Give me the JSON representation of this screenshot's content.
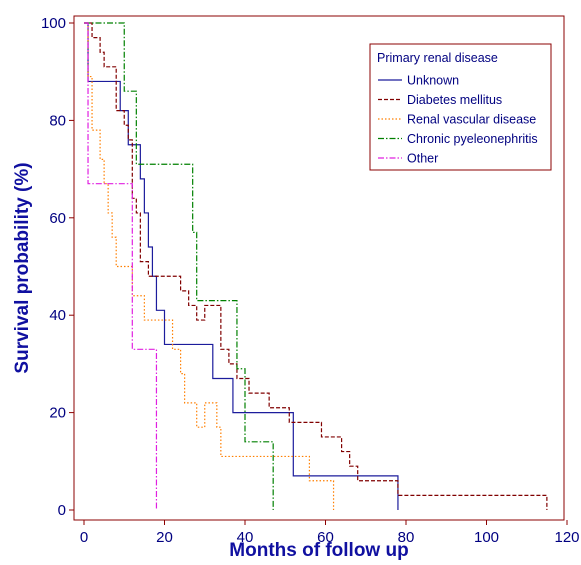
{
  "chart_data": {
    "type": "line",
    "subtype": "kaplan-meier step",
    "xlabel": "Months of follow up",
    "ylabel": "Survival probability (%)",
    "xlim": [
      0,
      120
    ],
    "ylim": [
      0,
      100
    ],
    "xticks": [
      0,
      20,
      40,
      60,
      80,
      100,
      120
    ],
    "yticks": [
      0,
      20,
      40,
      60,
      80,
      100
    ],
    "grid": false,
    "legend": {
      "title": "Primary renal disease",
      "position": "top-right"
    },
    "colors": {
      "axis": "#8b0000",
      "text": "#000080",
      "axis_title": "#1010a0"
    },
    "series": [
      {
        "name": "Unknown",
        "color": "#1c1c9c",
        "dash": "solid",
        "x": [
          0,
          1,
          9,
          11,
          14,
          15,
          16,
          17,
          18,
          20,
          32,
          33,
          37,
          52,
          78
        ],
        "y": [
          100,
          88,
          82,
          75,
          68,
          61,
          54,
          48,
          41,
          34,
          27,
          27,
          20,
          7,
          0
        ]
      },
      {
        "name": "Diabetes mellitus",
        "color": "#800000",
        "dash": "dashed",
        "x": [
          0,
          2,
          4,
          5,
          8,
          10,
          11,
          12,
          13,
          14,
          16,
          21,
          24,
          26,
          28,
          30,
          34,
          36,
          38,
          39,
          41,
          46,
          51,
          59,
          62,
          64,
          66,
          67,
          68,
          70,
          72,
          76,
          78,
          115
        ],
        "y": [
          100,
          97,
          94,
          91,
          82,
          79,
          76,
          64,
          61,
          51,
          48,
          48,
          45,
          42,
          39,
          42,
          33,
          30,
          27,
          27,
          24,
          21,
          18,
          15,
          15,
          12,
          9,
          9,
          6,
          6,
          6,
          6,
          3,
          0
        ]
      },
      {
        "name": "Renal vascular disease",
        "color": "#ff7f00",
        "dash": "dotted",
        "x": [
          0,
          1,
          2,
          4,
          5,
          6,
          7,
          8,
          12,
          15,
          22,
          24,
          25,
          26,
          28,
          30,
          33,
          34,
          37,
          46,
          56,
          61,
          62
        ],
        "y": [
          100,
          89,
          78,
          72,
          67,
          61,
          56,
          50,
          44,
          39,
          33,
          28,
          22,
          22,
          17,
          22,
          17,
          11,
          11,
          11,
          6,
          6,
          0
        ]
      },
      {
        "name": "Chronic pyeleonephritis",
        "color": "#008000",
        "dash": "dash-dot",
        "x": [
          0,
          9,
          10,
          11,
          13,
          14,
          26,
          27,
          28,
          32,
          37,
          38,
          39,
          40,
          46,
          47
        ],
        "y": [
          100,
          100,
          86,
          86,
          71,
          71,
          71,
          57,
          43,
          43,
          43,
          29,
          29,
          14,
          14,
          0
        ]
      },
      {
        "name": "Other",
        "color": "#e020e0",
        "dash": "dash-dot",
        "x": [
          0,
          1,
          11,
          12,
          17,
          18
        ],
        "y": [
          100,
          67,
          67,
          33,
          33,
          0
        ]
      }
    ]
  }
}
